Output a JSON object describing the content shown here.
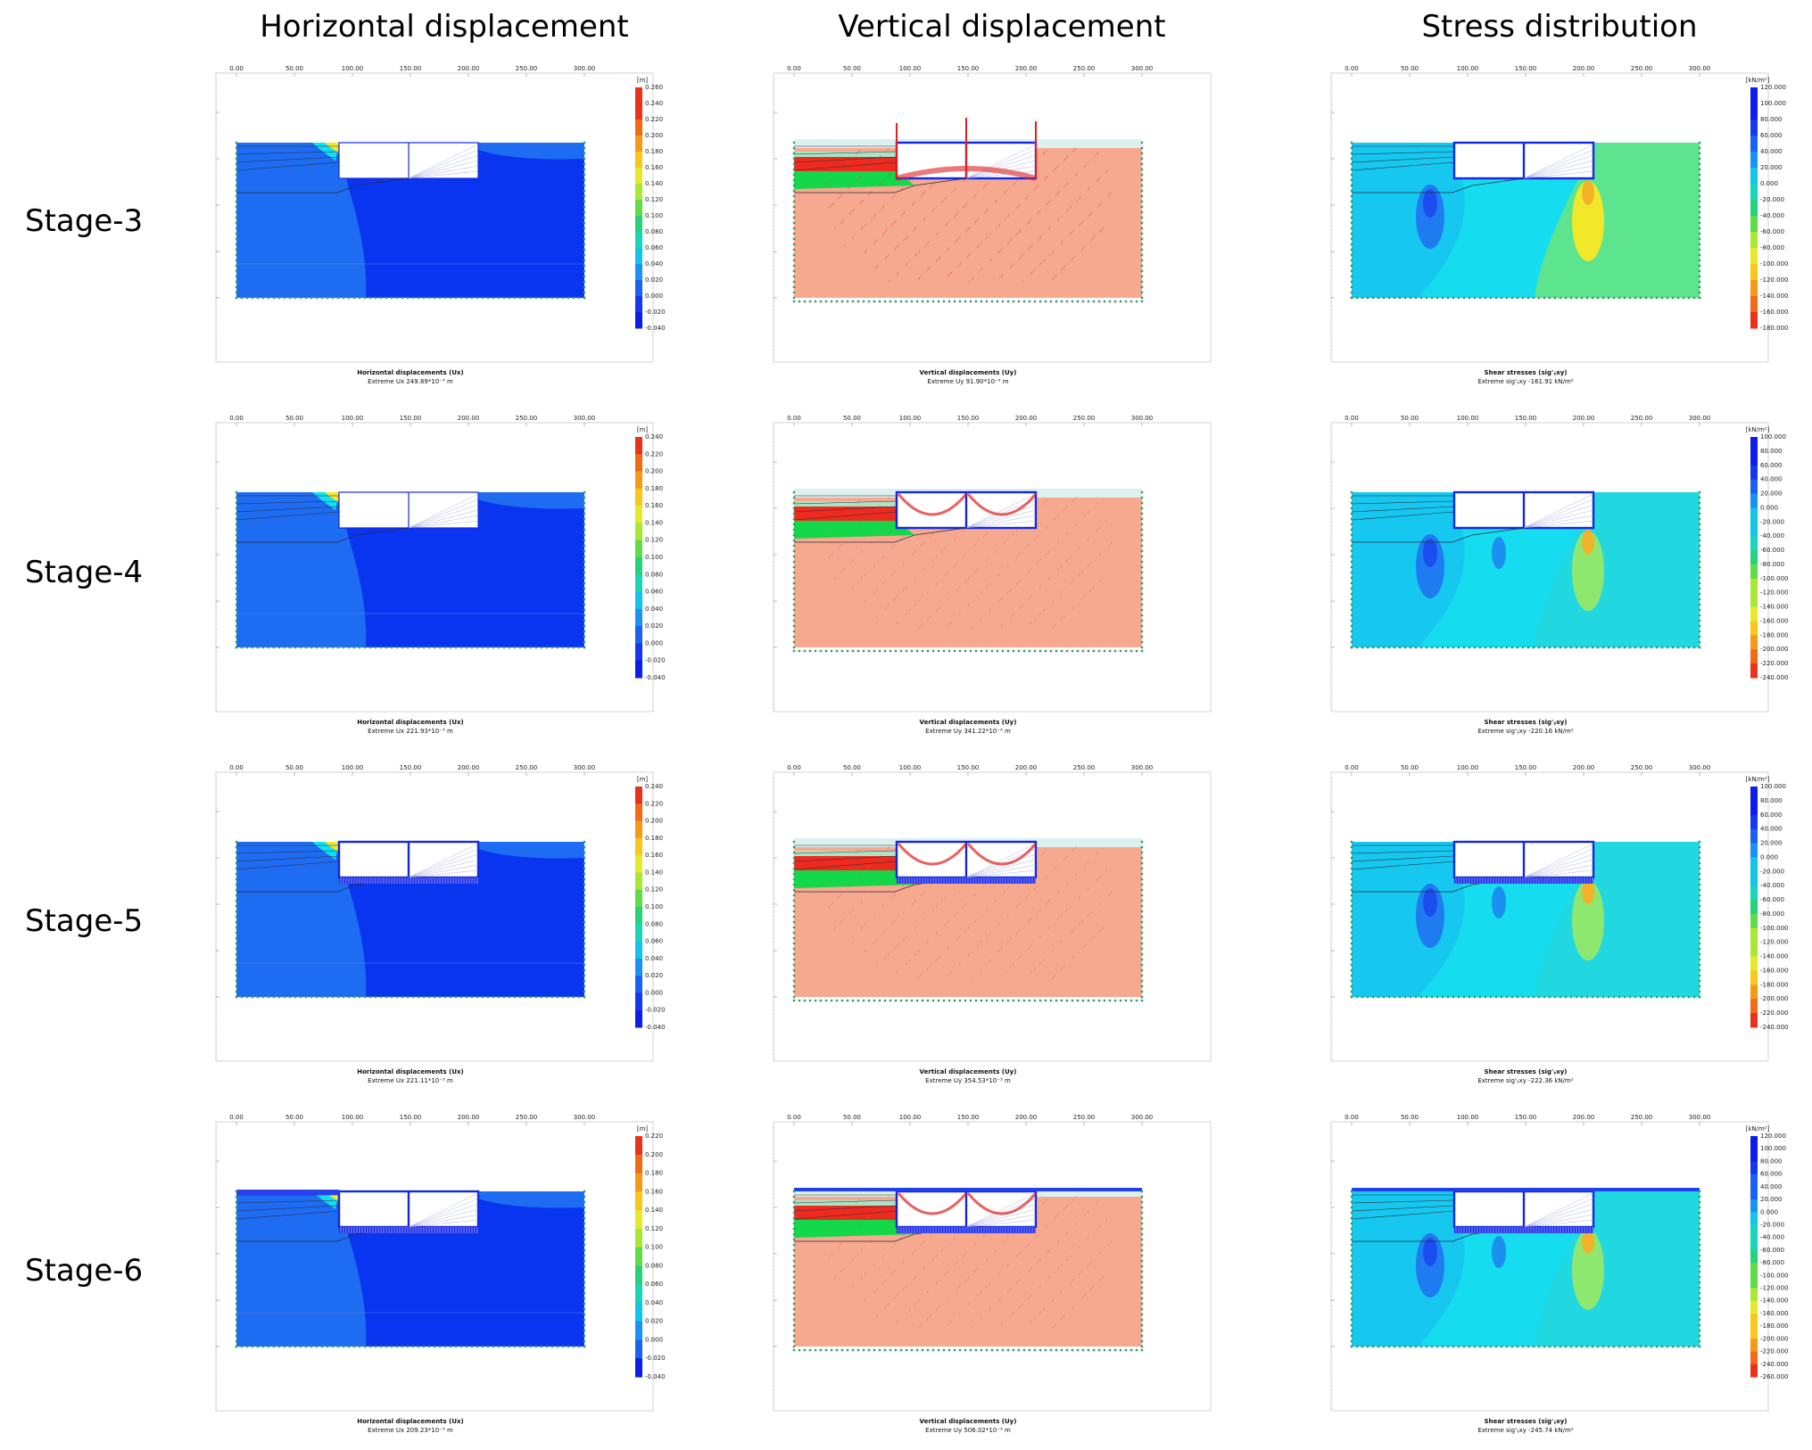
{
  "columns": [
    "Horizontal displacement",
    "Vertical displacement",
    "Stress distribution"
  ],
  "stages": [
    "Stage-3",
    "Stage-4",
    "Stage-5",
    "Stage-6"
  ],
  "x_ticks": [
    "0.00",
    "50.00",
    "100.00",
    "150.00",
    "200.00",
    "250.00",
    "300.00"
  ],
  "y_ticks": [
    "150.00",
    "100.00",
    "50.00",
    "0.00",
    "-50.00"
  ],
  "panels": [
    [
      {
        "kind": "horizontal",
        "unit": "[m]",
        "legend": [
          "0.260",
          "0.240",
          "0.220",
          "0.200",
          "0.180",
          "0.160",
          "0.140",
          "0.120",
          "0.100",
          "0.080",
          "0.060",
          "0.040",
          "0.020",
          "0.000",
          "-0.020",
          "-0.040"
        ],
        "caption": "Horizontal displacements (Ux)",
        "extreme": "Extreme Ux 249.89*10⁻³ m"
      },
      {
        "kind": "vertical",
        "caption": "Vertical displacements (Uy)",
        "extreme": "Extreme Uy 91.90*10⁻³ m"
      },
      {
        "kind": "stress",
        "unit": "[kN/m²]",
        "legend": [
          "120.000",
          "100.000",
          "80.000",
          "60.000",
          "40.000",
          "20.000",
          "0.000",
          "-20.000",
          "-40.000",
          "-60.000",
          "-80.000",
          "-100.000",
          "-120.000",
          "-140.000",
          "-160.000",
          "-180.000"
        ],
        "caption": "Shear stresses (sig'ᵧxy)",
        "extreme": "Extreme sig'ᵧxy -161.91 kN/m²"
      }
    ],
    [
      {
        "kind": "horizontal",
        "unit": "[m]",
        "legend": [
          "0.240",
          "0.220",
          "0.200",
          "0.180",
          "0.160",
          "0.140",
          "0.120",
          "0.100",
          "0.080",
          "0.060",
          "0.040",
          "0.020",
          "0.000",
          "-0.020",
          "-0.040"
        ],
        "caption": "Horizontal displacements (Ux)",
        "extreme": "Extreme Ux 221.93*10⁻³ m"
      },
      {
        "kind": "vertical",
        "caption": "Vertical displacements (Uy)",
        "extreme": "Extreme Uy 341.22*10⁻³ m"
      },
      {
        "kind": "stress",
        "unit": "[kN/m²]",
        "legend": [
          "100.000",
          "80.000",
          "60.000",
          "40.000",
          "20.000",
          "0.000",
          "-20.000",
          "-40.000",
          "-60.000",
          "-80.000",
          "-100.000",
          "-120.000",
          "-140.000",
          "-160.000",
          "-180.000",
          "-200.000",
          "-220.000",
          "-240.000"
        ],
        "caption": "Shear stresses (sig'ᵧxy)",
        "extreme": "Extreme sig'ᵧxy -220.16 kN/m²"
      }
    ],
    [
      {
        "kind": "horizontal",
        "unit": "[m]",
        "legend": [
          "0.240",
          "0.220",
          "0.200",
          "0.180",
          "0.160",
          "0.140",
          "0.120",
          "0.100",
          "0.080",
          "0.060",
          "0.040",
          "0.020",
          "0.000",
          "-0.020",
          "-0.040"
        ],
        "caption": "Horizontal displacements (Ux)",
        "extreme": "Extreme Ux 221.11*10⁻³ m"
      },
      {
        "kind": "vertical",
        "caption": "Vertical displacements (Uy)",
        "extreme": "Extreme Uy 354.53*10⁻³ m"
      },
      {
        "kind": "stress",
        "unit": "[kN/m²]",
        "legend": [
          "100.000",
          "80.000",
          "60.000",
          "40.000",
          "20.000",
          "0.000",
          "-20.000",
          "-40.000",
          "-60.000",
          "-80.000",
          "-100.000",
          "-120.000",
          "-140.000",
          "-160.000",
          "-180.000",
          "-200.000",
          "-220.000",
          "-240.000"
        ],
        "caption": "Shear stresses (sig'ᵧxy)",
        "extreme": "Extreme sig'ᵧxy -222.36 kN/m²"
      }
    ],
    [
      {
        "kind": "horizontal",
        "unit": "[m]",
        "legend": [
          "0.220",
          "0.200",
          "0.180",
          "0.160",
          "0.140",
          "0.120",
          "0.100",
          "0.080",
          "0.060",
          "0.040",
          "0.020",
          "0.000",
          "-0.020",
          "-0.040"
        ],
        "caption": "Horizontal displacements (Ux)",
        "extreme": "Extreme Ux 209.23*10⁻³ m"
      },
      {
        "kind": "vertical",
        "caption": "Vertical displacements (Uy)",
        "extreme": "Extreme Uy 506.02*10⁻³ m"
      },
      {
        "kind": "stress",
        "unit": "[kN/m²]",
        "legend": [
          "120.000",
          "100.000",
          "80.000",
          "60.000",
          "40.000",
          "20.000",
          "0.000",
          "-20.000",
          "-40.000",
          "-60.000",
          "-80.000",
          "-100.000",
          "-120.000",
          "-140.000",
          "-160.000",
          "-180.000",
          "-200.000",
          "-220.000",
          "-240.000",
          "-260.000"
        ],
        "caption": "Shear stresses (sig'ᵧxy)",
        "extreme": "Extreme sig'ᵧxy -245.74 kN/m²"
      }
    ]
  ],
  "colors": {
    "deep_blue": "#0a35f0",
    "mid_blue": "#1e6cf2",
    "cyan": "#10e0f0",
    "green": "#12d84a",
    "salmon": "#f6a98e",
    "red": "#ee2a1e",
    "yellow": "#f2e82a"
  }
}
